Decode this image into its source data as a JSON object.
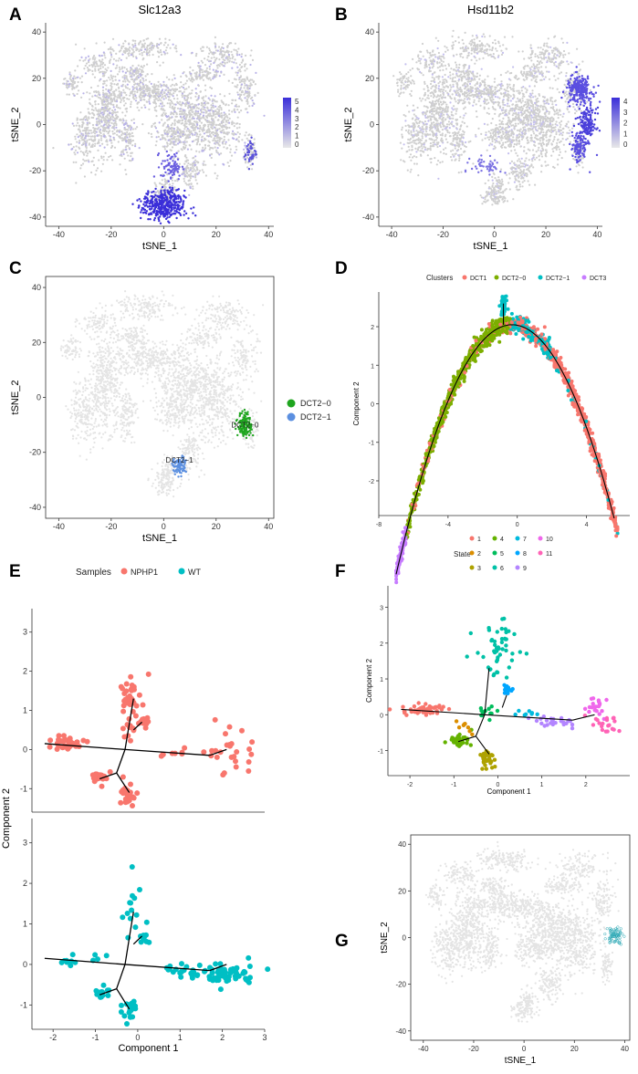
{
  "figure": {
    "panels": [
      "A",
      "B",
      "C",
      "D",
      "E",
      "F",
      "G"
    ]
  },
  "colors": {
    "cells_grey": "#cfcfcf",
    "cells_light": "#e6e6e6",
    "feature_high": "#3b2fd9",
    "DCT1": "#f8766d",
    "DCT2_0": "#7cae00",
    "DCT2_1": "#00bfc4",
    "DCT3": "#c77cff",
    "NPHP1": "#f8766d",
    "WT": "#00bfc4",
    "cluster_green": "#1fa51f",
    "cluster_blue": "#5b8fe0"
  },
  "chart_data": [
    {
      "panel": "A",
      "type": "scatter",
      "title": "Slc12a3",
      "xlabel": "tSNE_1",
      "ylabel": "tSNE_2",
      "xlim": [
        -45,
        42
      ],
      "ylim": [
        -44,
        44
      ],
      "xticks": [
        -40,
        -20,
        0,
        20,
        40
      ],
      "yticks": [
        -40,
        -20,
        0,
        20,
        40
      ],
      "legend": {
        "type": "colorbar",
        "min": 0,
        "max": 5,
        "ticks": [
          "5",
          "4",
          "3",
          "2",
          "1",
          "0"
        ]
      }
    },
    {
      "panel": "B",
      "type": "scatter",
      "title": "Hsd11b2",
      "xlabel": "tSNE_1",
      "ylabel": "tSNE_2",
      "xlim": [
        -45,
        42
      ],
      "ylim": [
        -44,
        44
      ],
      "xticks": [
        -40,
        -20,
        0,
        20,
        40
      ],
      "yticks": [
        -40,
        -20,
        0,
        20,
        40
      ],
      "legend": {
        "type": "colorbar",
        "min": 0,
        "max": 4.5,
        "ticks": [
          "4",
          "3",
          "2",
          "1",
          "0"
        ]
      }
    },
    {
      "panel": "C",
      "type": "scatter",
      "xlabel": "tSNE_1",
      "ylabel": "tSNE_2",
      "xlim": [
        -45,
        42
      ],
      "ylim": [
        -44,
        44
      ],
      "xticks": [
        -40,
        -20,
        0,
        20,
        40
      ],
      "yticks": [
        -40,
        -20,
        0,
        20,
        40
      ],
      "series": [
        {
          "name": "DCT2−0",
          "center": [
            31,
            -10
          ],
          "label": "DCT2−0"
        },
        {
          "name": "DCT2−1",
          "center": [
            6,
            -25
          ],
          "label": "DCT2−1"
        }
      ]
    },
    {
      "panel": "D",
      "type": "scatter",
      "xlabel": "",
      "ylabel": "Component 2",
      "xlim": [
        -8,
        6.5
      ],
      "ylim": [
        -2.9,
        2.9
      ],
      "xticks": [
        -8,
        -4,
        0,
        4
      ],
      "yticks": [
        -2,
        -1,
        0,
        1,
        2
      ],
      "legend_title": "Clusters",
      "series": [
        {
          "name": "DCT1"
        },
        {
          "name": "DCT2−0"
        },
        {
          "name": "DCT2−1"
        },
        {
          "name": "DCT3"
        }
      ]
    },
    {
      "panel": "E",
      "type": "scatter",
      "xlabel": "Component 1",
      "ylabel": "Component 2",
      "xlim": [
        -2.5,
        3
      ],
      "ylim": [
        -1.6,
        3.6
      ],
      "xticks": [
        -2,
        -1,
        0,
        1,
        2,
        3
      ],
      "yticks": [
        -1,
        0,
        1,
        2,
        3
      ],
      "legend_title": "Samples",
      "series": [
        {
          "name": "NPHP1"
        },
        {
          "name": "WT"
        }
      ]
    },
    {
      "panel": "F",
      "type": "scatter",
      "xlabel": "Component 1",
      "ylabel": "Component 2",
      "xlim": [
        -2.5,
        3
      ],
      "ylim": [
        -1.7,
        3.6
      ],
      "xticks": [
        -2,
        -1,
        0,
        1,
        2
      ],
      "yticks": [
        -1,
        0,
        1,
        2,
        3
      ],
      "legend_title": "State",
      "states": [
        "1",
        "2",
        "3",
        "4",
        "5",
        "6",
        "7",
        "8",
        "9",
        "10",
        "11"
      ],
      "state_colors": [
        "#f8766d",
        "#db8e00",
        "#aea200",
        "#64b200",
        "#00bd5c",
        "#00c1a7",
        "#00bade",
        "#00a6ff",
        "#b385ff",
        "#ef67eb",
        "#ff63b6"
      ]
    },
    {
      "panel": "G",
      "type": "scatter",
      "xlabel": "tSNE_1",
      "ylabel": "tSNE_2",
      "xlim": [
        -45,
        42
      ],
      "ylim": [
        -44,
        44
      ],
      "xticks": [
        -40,
        -20,
        0,
        20,
        40
      ],
      "yticks": [
        -40,
        -20,
        0,
        20,
        40
      ]
    }
  ]
}
